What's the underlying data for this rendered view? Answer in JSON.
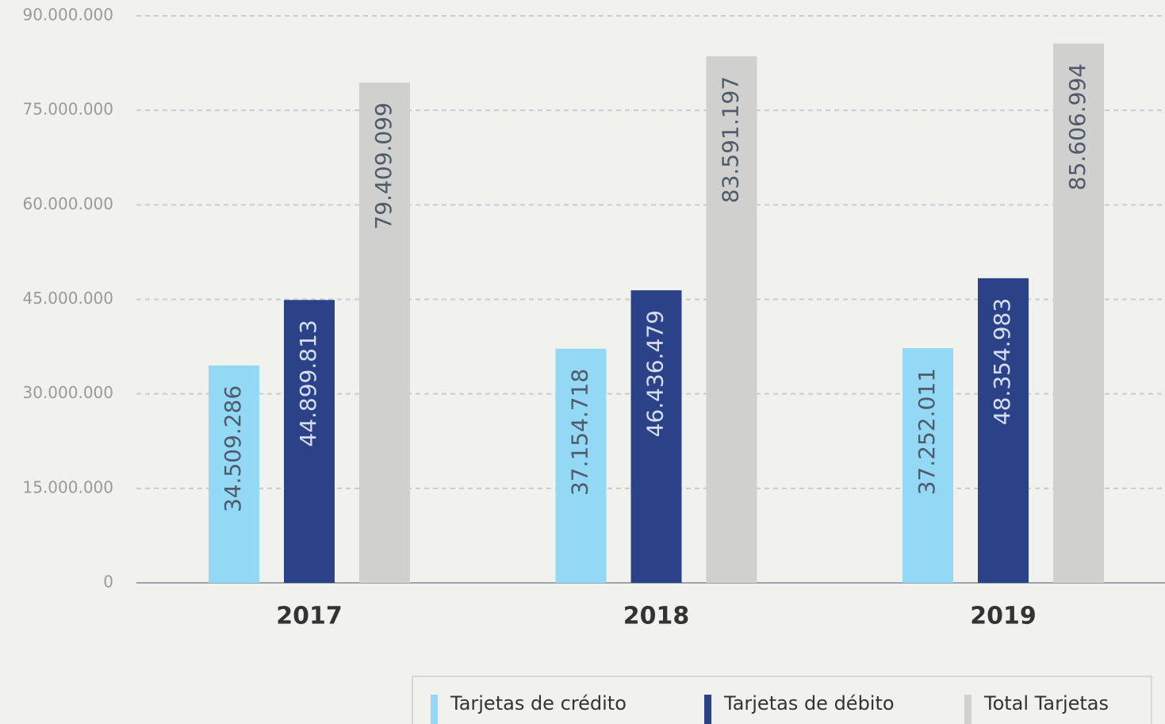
{
  "chart_data": {
    "type": "bar",
    "categories": [
      "2017",
      "2018",
      "2019"
    ],
    "series": [
      {
        "name": "Tarjetas de crédito",
        "color": "#93d8f4",
        "values": [
          34509286,
          37154718,
          37252011
        ],
        "value_labels": [
          "34.509.286",
          "37.154.718",
          "37.252.011"
        ]
      },
      {
        "name": "Tarjetas de débito",
        "color": "#2b4288",
        "values": [
          44899813,
          46436479,
          48354983
        ],
        "value_labels": [
          "44.899.813",
          "46.436.479",
          "48.354.983"
        ]
      },
      {
        "name": "Total Tarjetas",
        "color": "#d0d0ce",
        "values": [
          79409099,
          83591197,
          85606994
        ],
        "value_labels": [
          "79.409.099",
          "83.591.197",
          "85.606.994"
        ]
      }
    ],
    "ylim": [
      0,
      90000000
    ],
    "yticks": [
      0,
      {
        "value": 15000000,
        "label": "15.000.000"
      },
      {
        "value": 30000000,
        "label": "30.000.000"
      },
      {
        "value": 45000000,
        "label": "45.000.000"
      },
      {
        "value": 60000000,
        "label": "60.000.000"
      },
      {
        "value": 75000000,
        "label": "75.000.000"
      },
      {
        "value": 90000000,
        "label": "90.000.000"
      }
    ],
    "grid": true,
    "legend": "bottom-right"
  }
}
